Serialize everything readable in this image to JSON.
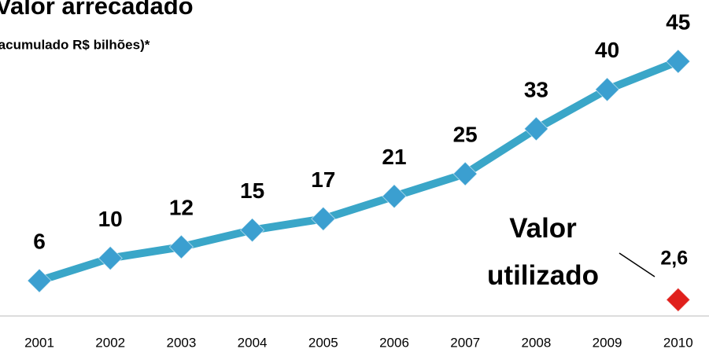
{
  "chart_data": {
    "type": "line",
    "title": "Valor arrecadado",
    "subtitle": "(acumulado R$ bilhões)*",
    "categories": [
      "2001",
      "2002",
      "2003",
      "2004",
      "2005",
      "2006",
      "2007",
      "2008",
      "2009",
      "2010"
    ],
    "series": [
      {
        "color": "#3aa6c8",
        "marker_color": "#3b9fd0",
        "values": [
          6,
          10,
          12,
          15,
          17,
          21,
          25,
          33,
          40,
          45
        ]
      },
      {
        "name": "Valor utilizado",
        "color": "#e0201c",
        "values": [
          null,
          null,
          null,
          null,
          null,
          null,
          null,
          null,
          null,
          2.6
        ],
        "value_labels": [
          null,
          null,
          null,
          null,
          null,
          null,
          null,
          null,
          null,
          "2,6"
        ]
      }
    ],
    "ylim": [
      0,
      50
    ]
  }
}
